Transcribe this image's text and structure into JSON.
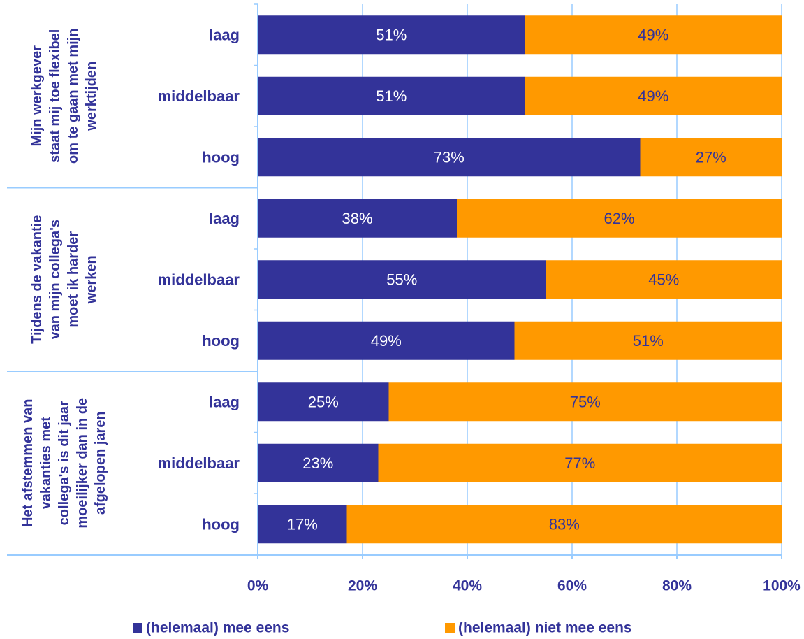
{
  "chart_data": {
    "type": "bar",
    "orientation": "horizontal",
    "stacked": true,
    "percent": true,
    "xlim": [
      0,
      100
    ],
    "ticks": [
      "0%",
      "20%",
      "40%",
      "60%",
      "80%",
      "100%"
    ],
    "groups": [
      {
        "label_lines": [
          "Mijn werkgever",
          "staat mij toe flexibel",
          "om te gaan met mijn",
          "werktijden"
        ],
        "categories": [
          "laag",
          "middelbaar",
          "hoog"
        ]
      },
      {
        "label_lines": [
          "Tijdens de vakantie",
          "van mijn collega's",
          "moet ik harder",
          "werken"
        ],
        "categories": [
          "laag",
          "middelbaar",
          "hoog"
        ]
      },
      {
        "label_lines": [
          "Het afstemmen van",
          "vakanties met",
          "collega's is dit jaar",
          "moeilijker dan in de",
          "afgelopen jaren"
        ],
        "categories": [
          "laag",
          "middelbaar",
          "hoog"
        ]
      }
    ],
    "series": [
      {
        "name": "(helemaal) mee eens",
        "color": "#333399",
        "text_color": "#ffffff",
        "values": [
          51,
          51,
          73,
          38,
          55,
          49,
          25,
          23,
          17
        ],
        "labels": [
          "51%",
          "51%",
          "73%",
          "38%",
          "55%",
          "49%",
          "25%",
          "23%",
          "17%"
        ]
      },
      {
        "name": "(helemaal) niet mee eens",
        "color": "#FF9900",
        "text_color": "#333399",
        "values": [
          49,
          49,
          27,
          62,
          45,
          51,
          75,
          77,
          83
        ],
        "labels": [
          "49%",
          "49%",
          "27%",
          "62%",
          "45%",
          "51%",
          "75%",
          "77%",
          "83%"
        ]
      }
    ],
    "grid": true,
    "legend_position": "bottom",
    "text_color": "#333399",
    "axis_color": "#99CCFF"
  }
}
